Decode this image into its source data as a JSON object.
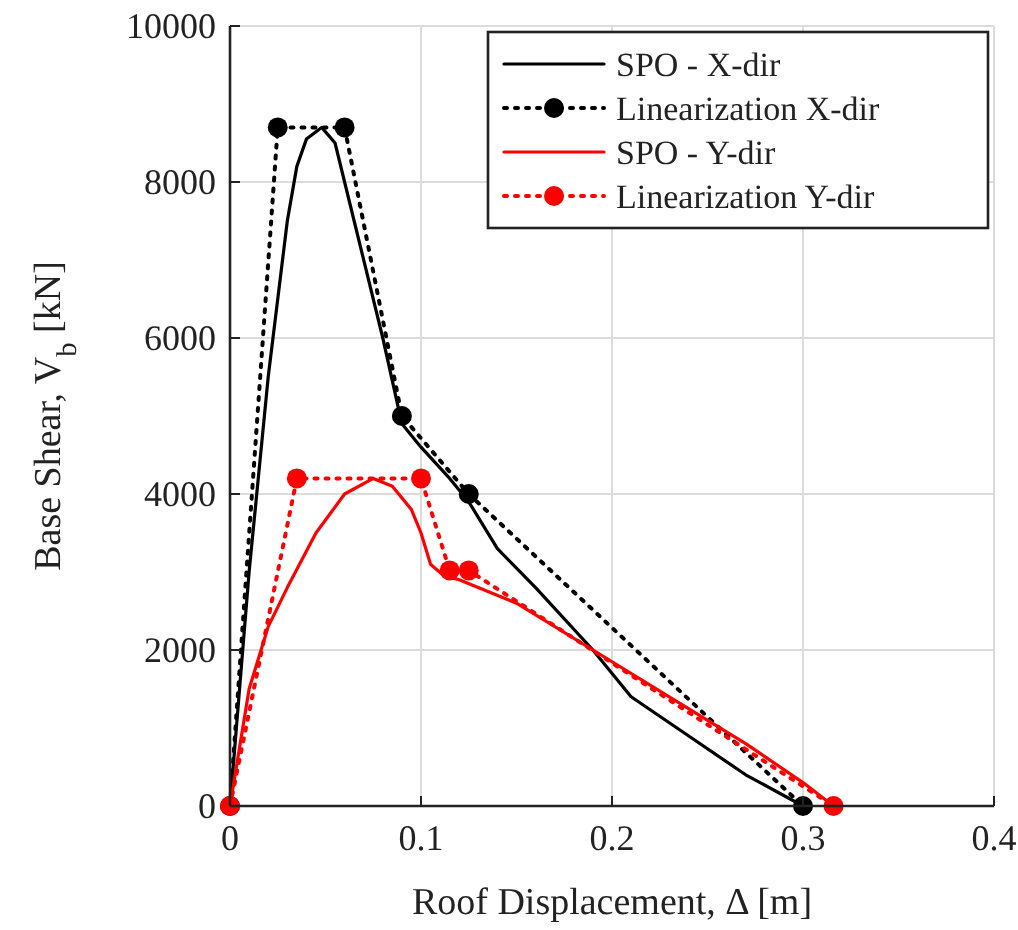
{
  "chart_data": {
    "type": "line",
    "xlabel": "Roof Displacement,  Δ [m]",
    "ylabel": "Base Shear, V$_{b}$ [kN]",
    "xlim": [
      0,
      0.4
    ],
    "xticks": [
      0,
      0.1,
      0.2,
      0.3,
      0.4
    ],
    "ylim": [
      0,
      10000
    ],
    "yticks": [
      0,
      2000,
      4000,
      6000,
      8000,
      10000
    ],
    "grid": true,
    "legend": "top right",
    "series": [
      {
        "name": "SPO - X-dir",
        "color": "#000000",
        "line_style": "solid",
        "marker": "none",
        "x": [
          0,
          0.01,
          0.02,
          0.03,
          0.035,
          0.04,
          0.048,
          0.055,
          0.065,
          0.08,
          0.09,
          0.1,
          0.115,
          0.125,
          0.14,
          0.16,
          0.19,
          0.21,
          0.24,
          0.27,
          0.3
        ],
        "values": [
          0,
          3000,
          5500,
          7500,
          8200,
          8550,
          8700,
          8500,
          7500,
          6000,
          4900,
          4600,
          4200,
          3900,
          3300,
          2800,
          2000,
          1400,
          900,
          400,
          0
        ]
      },
      {
        "name": "Linearization X-dir",
        "color": "#000000",
        "line_style": "dotted",
        "marker": "circle",
        "x": [
          0,
          0.025,
          0.06,
          0.09,
          0.125,
          0.3
        ],
        "values": [
          0,
          8700,
          8700,
          5000,
          4000,
          0
        ]
      },
      {
        "name": "SPO - Y-dir",
        "color": "#ff0000",
        "line_style": "solid",
        "marker": "none",
        "x": [
          0,
          0.01,
          0.02,
          0.03,
          0.045,
          0.06,
          0.075,
          0.085,
          0.095,
          0.1,
          0.105,
          0.112,
          0.12,
          0.15,
          0.19,
          0.23,
          0.27,
          0.3,
          0.316
        ],
        "values": [
          0,
          1500,
          2300,
          2800,
          3500,
          4000,
          4200,
          4100,
          3800,
          3500,
          3100,
          2950,
          2900,
          2600,
          2000,
          1400,
          800,
          300,
          0
        ]
      },
      {
        "name": "Linearization Y-dir",
        "color": "#ff0000",
        "line_style": "dotted",
        "marker": "circle",
        "x": [
          0,
          0.035,
          0.1,
          0.115,
          0.125,
          0.316
        ],
        "values": [
          0,
          4200,
          4200,
          3020,
          3020,
          0
        ]
      }
    ]
  }
}
